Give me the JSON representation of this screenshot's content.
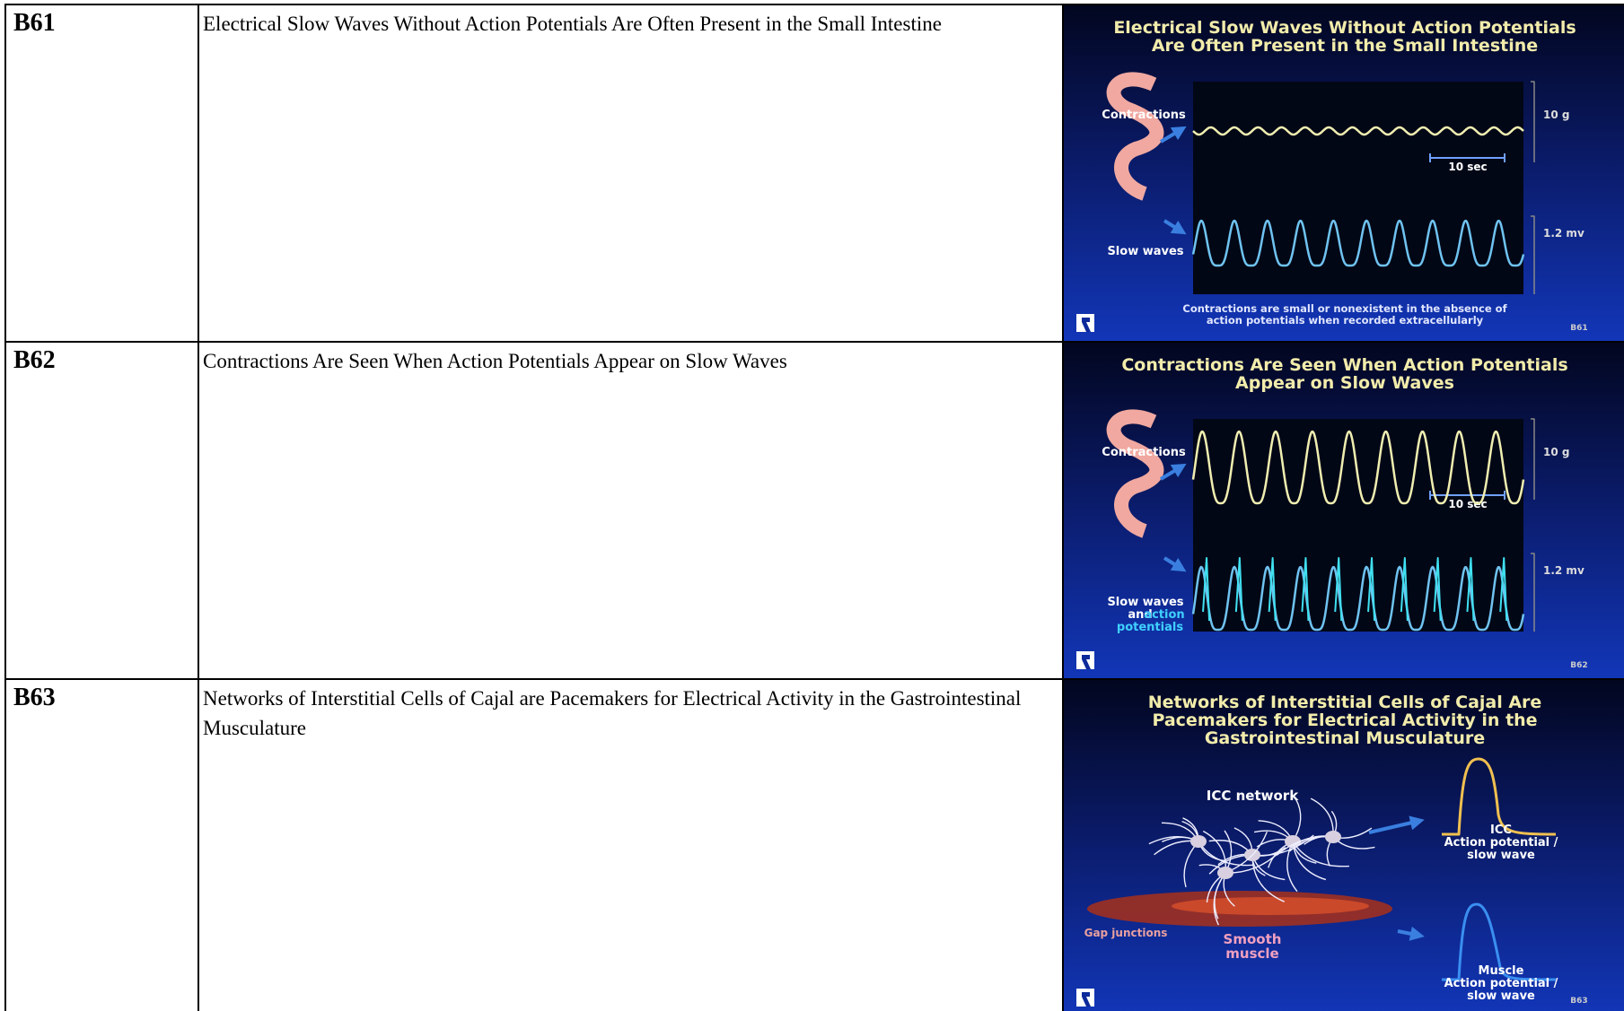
{
  "rows": [
    {
      "id": "B61",
      "description": "Electrical Slow Waves Without Action Potentials Are Often Present in the Small Intestine",
      "slide": {
        "title": [
          "Electrical Slow Waves Without Action Potentials",
          "Are Often Present in the Small Intestine"
        ],
        "upper_label": [
          "Contractions"
        ],
        "lower_label": [
          "Slow waves"
        ],
        "upper_scale": "10 g",
        "time_scale": "10 sec",
        "lower_scale": "1.2 mv",
        "caption": [
          "Contractions are small or nonexistent in the absence of",
          "action potentials when recorded extracellularly"
        ],
        "code": "B61"
      }
    },
    {
      "id": "B62",
      "description": "Contractions Are Seen When Action Potentials Appear on Slow Waves",
      "slide": {
        "title": [
          "Contractions Are Seen When Action Potentials",
          "Appear on Slow Waves"
        ],
        "upper_label": [
          "Contractions"
        ],
        "lower_label": [
          "Slow waves",
          "and",
          "action",
          "potentials"
        ],
        "upper_scale": "10 g",
        "time_scale": "10 sec",
        "lower_scale": "1.2 mv",
        "code": "B62"
      }
    },
    {
      "id": "B63",
      "description": "Networks of Interstitial Cells of Cajal are Pacemakers for Electrical Activity in the Gastrointestinal Musculature",
      "slide": {
        "title": [
          "Networks of Interstitial Cells of Cajal Are",
          "Pacemakers for Electrical Activity in the",
          "Gastrointestinal Musculature"
        ],
        "network_label": "ICC network",
        "gap_label": "Gap junctions",
        "muscle_label": [
          "Smooth",
          "muscle"
        ],
        "icc_trace_label": [
          "ICC",
          "Action potential /",
          "slow wave"
        ],
        "muscle_trace_label": [
          "Muscle",
          "Action potential /",
          "slow wave"
        ],
        "code": "B63"
      }
    }
  ]
}
